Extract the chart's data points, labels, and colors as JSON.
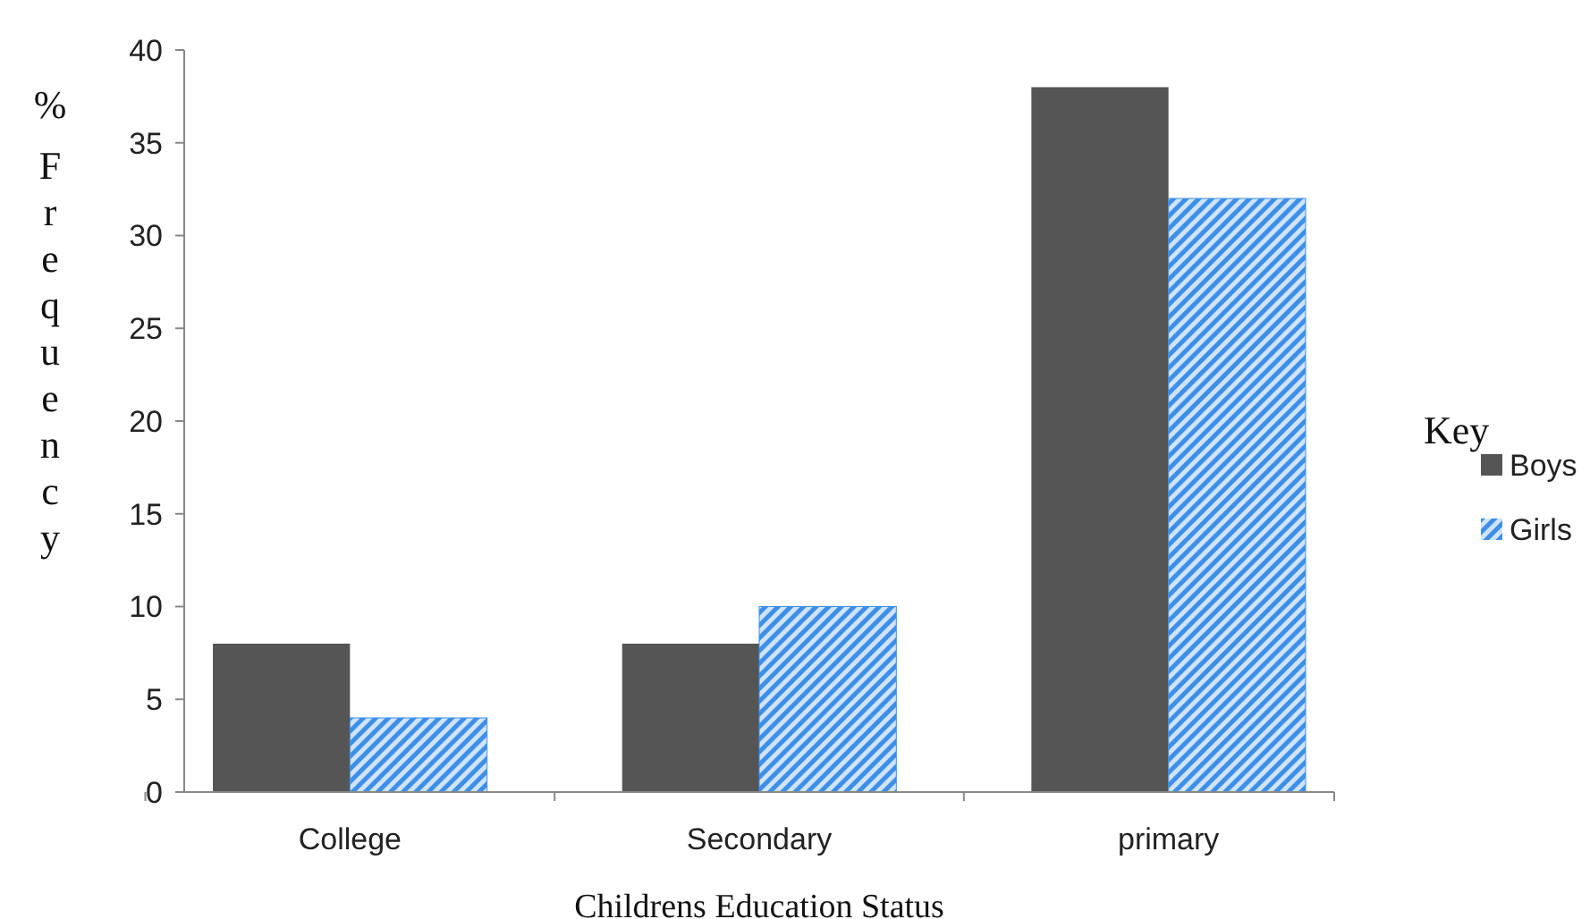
{
  "chart_data": {
    "type": "bar",
    "xlabel": "Childrens Education Status",
    "ylabel": "% Frequency",
    "legend_title": "Key",
    "legend": "right",
    "categories": [
      "College",
      "Secondary",
      "primary"
    ],
    "series": [
      {
        "name": "Boys",
        "color": "#555555",
        "values": [
          8,
          8,
          38
        ]
      },
      {
        "name": "Girls",
        "color": "#3d8fe8",
        "values": [
          4,
          10,
          32
        ]
      }
    ],
    "ylim": [
      0,
      40
    ],
    "yticks": [
      0,
      5,
      10,
      15,
      20,
      25,
      30,
      35,
      40
    ]
  }
}
